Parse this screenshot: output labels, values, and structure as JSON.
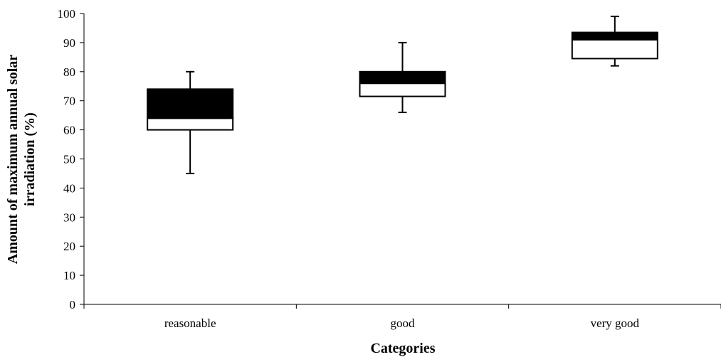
{
  "chart_data": {
    "type": "box",
    "xlabel": "Categories",
    "ylabel_lines": [
      "Amount of maximum annual solar",
      "irradiation (%)"
    ],
    "ylim": [
      0,
      100
    ],
    "yticks": [
      0,
      10,
      20,
      30,
      40,
      50,
      60,
      70,
      80,
      90,
      100
    ],
    "ytick_labels": [
      "0",
      "10",
      "20",
      "30",
      "40",
      "50",
      "60",
      "70",
      "80",
      "90",
      "100"
    ],
    "grid": false,
    "legend": "none",
    "categories": [
      "reasonable",
      "good",
      "very good"
    ],
    "boxes": [
      {
        "category": "reasonable",
        "min": 45,
        "q1": 60,
        "median": 64,
        "q3": 74,
        "max": 80
      },
      {
        "category": "good",
        "min": 66,
        "q1": 71.5,
        "median": 76,
        "q3": 80,
        "max": 90
      },
      {
        "category": "very good",
        "min": 82,
        "q1": 84.5,
        "median": 91,
        "q3": 93.5,
        "max": 99
      }
    ],
    "colors": {
      "lower_box": "#ffffff",
      "upper_box": "#000000",
      "stroke": "#000000"
    }
  }
}
